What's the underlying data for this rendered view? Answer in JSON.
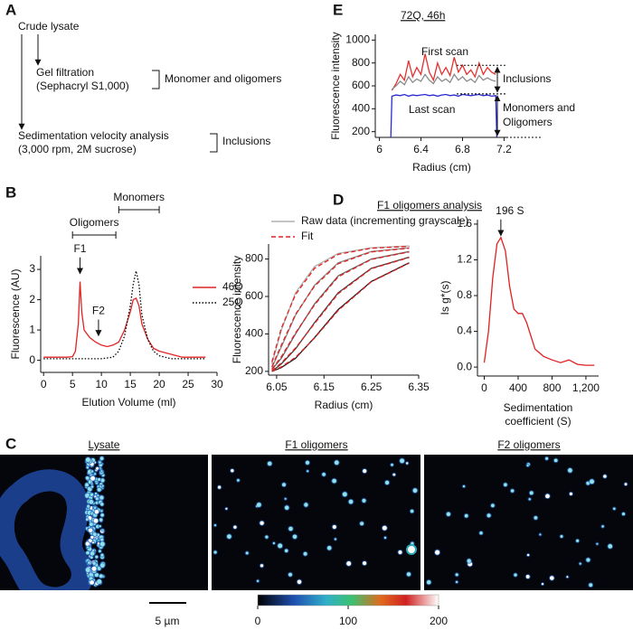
{
  "panel_labels": [
    "A",
    "B",
    "C",
    "D",
    "E"
  ],
  "flowchart": {
    "steps": [
      "Crude lysate",
      "Gel filtration",
      "(Sephacryl S1,000)",
      "Sedimentation velocity analysis",
      "(3,000 rpm, 2M sucrose)"
    ],
    "brackets": [
      "Monomer and oligomers",
      "Inclusions"
    ]
  },
  "chart_data": [
    {
      "type": "line",
      "x_label": "Elution Volume (ml)",
      "y_label": "Fluorescence (AU)",
      "xlim": [
        -0.5,
        30
      ],
      "ylim": [
        -0.4,
        3.45
      ],
      "xticks": [
        0,
        5,
        10,
        15,
        20,
        25,
        30
      ],
      "yticks": [
        0,
        1,
        2,
        3
      ],
      "legend": "right",
      "series": [
        {
          "name": "46Q",
          "color": "#e02424",
          "dash": "solid",
          "x": [
            0,
            2,
            4,
            5,
            5.5,
            6,
            6.3,
            6.6,
            7,
            8,
            9,
            10,
            11,
            12,
            13,
            14,
            15,
            15.5,
            16,
            16.5,
            17,
            18,
            19,
            20,
            22,
            24,
            28
          ],
          "values": [
            0.1,
            0.1,
            0.1,
            0.12,
            0.3,
            1.2,
            2.6,
            1.6,
            1.0,
            0.75,
            0.6,
            0.5,
            0.45,
            0.5,
            0.6,
            1.0,
            1.6,
            2.0,
            2.05,
            1.8,
            1.2,
            0.7,
            0.4,
            0.3,
            0.2,
            0.1,
            0.1
          ]
        },
        {
          "name": "25Q",
          "color": "#000000",
          "dash": "dotted",
          "x": [
            0,
            6,
            10,
            12,
            13,
            14,
            15,
            15.5,
            16,
            16.5,
            17,
            18,
            19,
            20,
            22,
            28
          ],
          "values": [
            0.05,
            0.05,
            0.05,
            0.1,
            0.3,
            0.8,
            1.8,
            2.5,
            2.95,
            2.5,
            1.5,
            0.7,
            0.3,
            0.15,
            0.05,
            0.05
          ]
        }
      ],
      "ranges": [
        {
          "text": "Monomers",
          "range": [
            13,
            20
          ]
        },
        {
          "text": "Oligomers",
          "range": [
            5,
            12.5
          ]
        }
      ],
      "arrows": [
        {
          "text": "F1",
          "x": 6.3,
          "y": 2.8
        },
        {
          "text": "F2",
          "x": 9.5,
          "y": 0.75
        }
      ]
    },
    {
      "type": "line",
      "title": "72Q, 46h",
      "x_label": "Radius (cm)",
      "y_label": "Fluorescence intensity",
      "xlim": [
        5.96,
        7.24
      ],
      "ylim": [
        150,
        1050
      ],
      "xticks": [
        6.0,
        6.4,
        6.8,
        7.2
      ],
      "yticks": [
        200,
        400,
        600,
        800,
        1000
      ],
      "legend": "inline",
      "series": [
        {
          "name": "First scan",
          "color": "#e53030",
          "dash": "solid",
          "x": [
            6.12,
            6.16,
            6.2,
            6.24,
            6.28,
            6.32,
            6.36,
            6.4,
            6.44,
            6.48,
            6.52,
            6.56,
            6.6,
            6.64,
            6.68,
            6.72,
            6.76,
            6.8,
            6.84,
            6.88,
            6.92,
            6.96,
            7.0,
            7.04,
            7.08,
            7.12
          ],
          "values": [
            560,
            620,
            700,
            650,
            820,
            680,
            760,
            700,
            880,
            720,
            650,
            800,
            700,
            760,
            690,
            850,
            720,
            780,
            700,
            740,
            680,
            800,
            700,
            760,
            720,
            700
          ]
        },
        {
          "color": "#8a8a8a",
          "dash": "solid",
          "x": [
            6.12,
            6.16,
            6.2,
            6.24,
            6.28,
            6.32,
            6.36,
            6.4,
            6.44,
            6.48,
            6.52,
            6.56,
            6.6,
            6.64,
            6.68,
            6.72,
            6.76,
            6.8,
            6.84,
            6.88,
            6.92,
            6.96,
            7.0,
            7.04,
            7.08,
            7.12
          ],
          "values": [
            570,
            600,
            640,
            610,
            680,
            630,
            660,
            640,
            700,
            650,
            620,
            680,
            640,
            660,
            630,
            700,
            650,
            680,
            640,
            660,
            630,
            690,
            650,
            670,
            650,
            640
          ]
        },
        {
          "name": "Last scan",
          "color": "#2a2ad0",
          "dash": "solid",
          "x": [
            6.11,
            6.12,
            6.16,
            6.2,
            6.24,
            6.28,
            6.32,
            6.36,
            6.4,
            6.44,
            6.48,
            6.52,
            6.56,
            6.6,
            6.64,
            6.68,
            6.72,
            6.76,
            6.8,
            6.84,
            6.88,
            6.92,
            6.96,
            7.0,
            7.04,
            7.08,
            7.12,
            7.13
          ],
          "values": [
            150,
            510,
            520,
            515,
            525,
            510,
            520,
            515,
            520,
            525,
            515,
            520,
            510,
            520,
            525,
            515,
            520,
            510,
            525,
            520,
            515,
            520,
            525,
            515,
            520,
            510,
            515,
            150
          ]
        }
      ],
      "brackets": [
        {
          "lines": [
            "Inclusions"
          ],
          "range": [
            530,
            780
          ]
        },
        {
          "lines": [
            "Monomers and",
            "Oligomers"
          ],
          "range": [
            150,
            530
          ]
        }
      ]
    },
    {
      "type": "line",
      "title": "F1 oligomers analysis",
      "x_label": "Radius (cm)",
      "y_label": "Fluorescence intensity",
      "xlim": [
        6.033,
        6.35
      ],
      "ylim": [
        180,
        880
      ],
      "xticks": [
        6.05,
        6.15,
        6.25,
        6.35
      ],
      "yticks": [
        200,
        400,
        600,
        800
      ],
      "legend": "top",
      "series": [
        {
          "name": "Raw data (incrementing grayscale)",
          "color": "#b0b0b0",
          "dash": "solid",
          "x": [
            6.04,
            6.06,
            6.09,
            6.13,
            6.18,
            6.25,
            6.33
          ],
          "values": [
            240,
            420,
            620,
            760,
            830,
            860,
            870
          ]
        },
        {
          "color": "#8c8c8c",
          "dash": "solid",
          "x": [
            6.04,
            6.06,
            6.09,
            6.13,
            6.18,
            6.25,
            6.33
          ],
          "values": [
            220,
            330,
            500,
            660,
            780,
            840,
            860
          ]
        },
        {
          "color": "#666666",
          "dash": "solid",
          "x": [
            6.04,
            6.06,
            6.09,
            6.13,
            6.18,
            6.25,
            6.33
          ],
          "values": [
            210,
            270,
            400,
            560,
            710,
            800,
            840
          ]
        },
        {
          "color": "#404040",
          "dash": "solid",
          "x": [
            6.04,
            6.06,
            6.09,
            6.13,
            6.18,
            6.25,
            6.33
          ],
          "values": [
            200,
            240,
            320,
            460,
            620,
            750,
            810
          ]
        },
        {
          "color": "#1a1a1a",
          "dash": "solid",
          "x": [
            6.04,
            6.06,
            6.09,
            6.13,
            6.18,
            6.25,
            6.33
          ],
          "values": [
            200,
            220,
            270,
            380,
            530,
            680,
            780
          ]
        },
        {
          "name": "Fit",
          "color": "#e02020",
          "dash": "dashed",
          "x": [
            6.04,
            6.06,
            6.09,
            6.13,
            6.18,
            6.25,
            6.33
          ],
          "values": [
            250,
            430,
            610,
            750,
            825,
            858,
            868
          ]
        },
        {
          "color": "#e02020",
          "dash": "dashed",
          "x": [
            6.04,
            6.06,
            6.09,
            6.13,
            6.18,
            6.25,
            6.33
          ],
          "values": [
            225,
            340,
            505,
            655,
            775,
            838,
            858
          ]
        },
        {
          "color": "#e02020",
          "dash": "dashed",
          "x": [
            6.04,
            6.06,
            6.09,
            6.13,
            6.18,
            6.25,
            6.33
          ],
          "values": [
            212,
            278,
            405,
            555,
            705,
            798,
            838
          ]
        },
        {
          "color": "#e02020",
          "dash": "dashed",
          "x": [
            6.04,
            6.06,
            6.09,
            6.13,
            6.18,
            6.25,
            6.33
          ],
          "values": [
            203,
            245,
            325,
            455,
            615,
            748,
            808
          ]
        },
        {
          "color": "#e02020",
          "dash": "dashed",
          "x": [
            6.04,
            6.06,
            6.09,
            6.13,
            6.18,
            6.25,
            6.33
          ],
          "values": [
            201,
            224,
            275,
            378,
            525,
            678,
            778
          ]
        }
      ]
    },
    {
      "type": "line",
      "x_label": [
        "Sedimentation",
        "coefficient (S)"
      ],
      "y_label": "Is g*(s)",
      "xlim": [
        -80,
        1350
      ],
      "ylim": [
        -0.1,
        1.65
      ],
      "xticks": [
        0,
        400,
        800,
        {
          "value": 1200,
          "label": "1,200"
        }
      ],
      "yticks": [
        {
          "value": 0,
          "label": "0.0"
        },
        {
          "value": 0.4,
          "label": "0.4"
        },
        {
          "value": 0.8,
          "label": "0.8"
        },
        {
          "value": 1.2,
          "label": "1.2"
        },
        {
          "value": 1.6,
          "label": "1.6"
        }
      ],
      "series": [
        {
          "color": "#e02020",
          "dash": "solid",
          "x": [
            0,
            50,
            100,
            150,
            196,
            250,
            300,
            350,
            400,
            450,
            500,
            550,
            600,
            700,
            800,
            900,
            1000,
            1100,
            1200,
            1300
          ],
          "values": [
            0.05,
            0.4,
            1.0,
            1.38,
            1.45,
            1.3,
            0.9,
            0.65,
            0.6,
            0.6,
            0.5,
            0.35,
            0.2,
            0.12,
            0.08,
            0.05,
            0.08,
            0.03,
            0.02,
            0.02
          ]
        }
      ],
      "arrows": [
        {
          "text": "196 S",
          "x": 196,
          "y": 1.45
        }
      ]
    }
  ],
  "images": {
    "titles": [
      "Lysate",
      "F1 oligomers",
      "F2 oligomers"
    ],
    "scale_bar": "5 µm",
    "colorbar": {
      "range": [
        0,
        200
      ],
      "ticks": [
        0,
        100,
        200
      ]
    }
  }
}
